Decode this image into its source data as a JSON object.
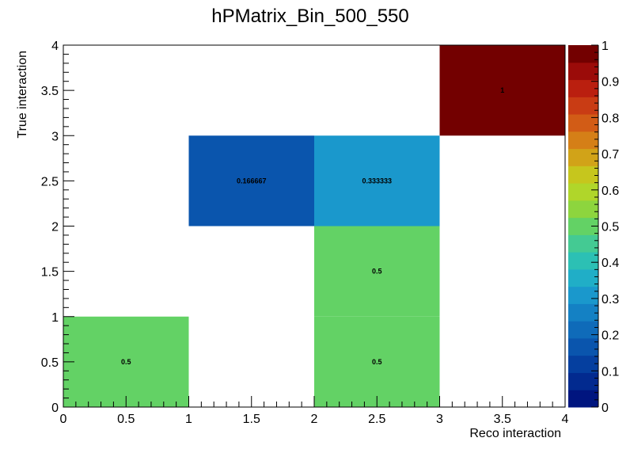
{
  "chart_data": {
    "type": "heatmap",
    "title": "hPMatrix_Bin_500_550",
    "xlabel": "Reco interaction",
    "ylabel": "True interaction",
    "xlim": [
      0,
      4
    ],
    "ylim": [
      0,
      4
    ],
    "zlim": [
      0,
      1
    ],
    "x_ticks": [
      "0",
      "0.5",
      "1",
      "1.5",
      "2",
      "2.5",
      "3",
      "3.5",
      "4"
    ],
    "y_ticks": [
      "0",
      "0.5",
      "1",
      "1.5",
      "2",
      "2.5",
      "3",
      "3.5",
      "4"
    ],
    "z_ticks": [
      "0",
      "0.1",
      "0.2",
      "0.3",
      "0.4",
      "0.5",
      "0.6",
      "0.7",
      "0.8",
      "0.9",
      "1"
    ],
    "cells": [
      {
        "x": 0,
        "y": 0,
        "value": 0.5,
        "label": "0.5"
      },
      {
        "x": 2,
        "y": 0,
        "value": 0.5,
        "label": "0.5"
      },
      {
        "x": 2,
        "y": 1,
        "value": 0.5,
        "label": "0.5"
      },
      {
        "x": 1,
        "y": 2,
        "value": 0.166667,
        "label": "0.166667"
      },
      {
        "x": 2,
        "y": 2,
        "value": 0.333333,
        "label": "0.333333"
      },
      {
        "x": 3,
        "y": 3,
        "value": 1,
        "label": "1"
      }
    ],
    "palette": [
      "#00157f",
      "#022a8f",
      "#053f9f",
      "#0a55ad",
      "#0f6bb9",
      "#1481c4",
      "#1a98cc",
      "#20aec7",
      "#2cc0b4",
      "#44ca93",
      "#63d265",
      "#8dd53e",
      "#b0d62a",
      "#c6c61d",
      "#d1a318",
      "#d57f17",
      "#d25c16",
      "#c93c14",
      "#ba1f0f",
      "#9b0b09",
      "#730000"
    ]
  }
}
